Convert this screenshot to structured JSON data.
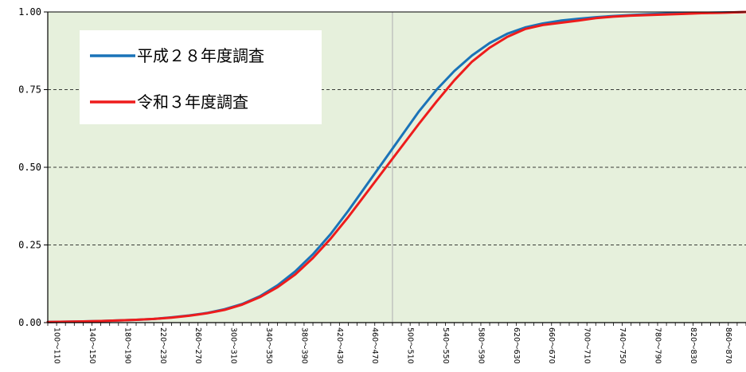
{
  "chart_data": {
    "type": "line",
    "title": "",
    "xlabel": "",
    "ylabel": "",
    "ylim": [
      0,
      1
    ],
    "y_ticks": [
      "0.00",
      "0.25",
      "0.50",
      "0.75",
      "1.00"
    ],
    "x_tick_labels": [
      "100～110",
      "140～150",
      "180～190",
      "220～230",
      "260～270",
      "300～310",
      "340～350",
      "380～390",
      "420～430",
      "460～470",
      "500～510",
      "540～550",
      "580～590",
      "620～630",
      "660～670",
      "700～710",
      "740～750",
      "780～790",
      "820～830",
      "860～870"
    ],
    "x_tick_values": [
      100,
      140,
      180,
      220,
      260,
      300,
      340,
      380,
      420,
      460,
      500,
      540,
      580,
      620,
      660,
      700,
      740,
      780,
      820,
      860
    ],
    "bin_width": 10,
    "grid": "horizontal dashed",
    "median_line_x": 490,
    "legend_placement": "top-left",
    "colors": {
      "plot_bg": "#e6f0dc",
      "series_1": "#1a73b8",
      "series_2": "#ee1c1c"
    },
    "series": [
      {
        "name": "平成２８年度調査",
        "x": [
          100,
          120,
          140,
          160,
          180,
          200,
          220,
          240,
          260,
          280,
          300,
          320,
          340,
          360,
          380,
          400,
          420,
          440,
          460,
          480,
          500,
          520,
          540,
          560,
          580,
          600,
          620,
          640,
          660,
          680,
          700,
          720,
          740,
          760,
          780,
          800,
          820,
          840,
          860,
          880,
          890
        ],
        "values": [
          0.002,
          0.003,
          0.004,
          0.005,
          0.007,
          0.009,
          0.012,
          0.017,
          0.023,
          0.031,
          0.043,
          0.06,
          0.085,
          0.12,
          0.165,
          0.22,
          0.285,
          0.36,
          0.44,
          0.52,
          0.6,
          0.68,
          0.75,
          0.81,
          0.86,
          0.9,
          0.93,
          0.95,
          0.963,
          0.972,
          0.978,
          0.983,
          0.987,
          0.99,
          0.993,
          0.995,
          0.996,
          0.997,
          0.998,
          0.999,
          1.0
        ]
      },
      {
        "name": "令和３年度調査",
        "x": [
          100,
          120,
          140,
          160,
          180,
          200,
          220,
          240,
          260,
          280,
          300,
          320,
          340,
          360,
          380,
          400,
          420,
          440,
          460,
          480,
          500,
          520,
          540,
          560,
          580,
          600,
          620,
          640,
          660,
          680,
          700,
          720,
          740,
          760,
          780,
          800,
          820,
          840,
          860,
          880,
          890
        ],
        "values": [
          0.002,
          0.003,
          0.004,
          0.005,
          0.007,
          0.009,
          0.012,
          0.016,
          0.022,
          0.03,
          0.041,
          0.058,
          0.082,
          0.114,
          0.155,
          0.208,
          0.27,
          0.34,
          0.415,
          0.49,
          0.565,
          0.64,
          0.712,
          0.78,
          0.84,
          0.885,
          0.92,
          0.945,
          0.958,
          0.965,
          0.972,
          0.98,
          0.985,
          0.988,
          0.99,
          0.992,
          0.994,
          0.996,
          0.997,
          0.999,
          1.0
        ]
      }
    ]
  }
}
